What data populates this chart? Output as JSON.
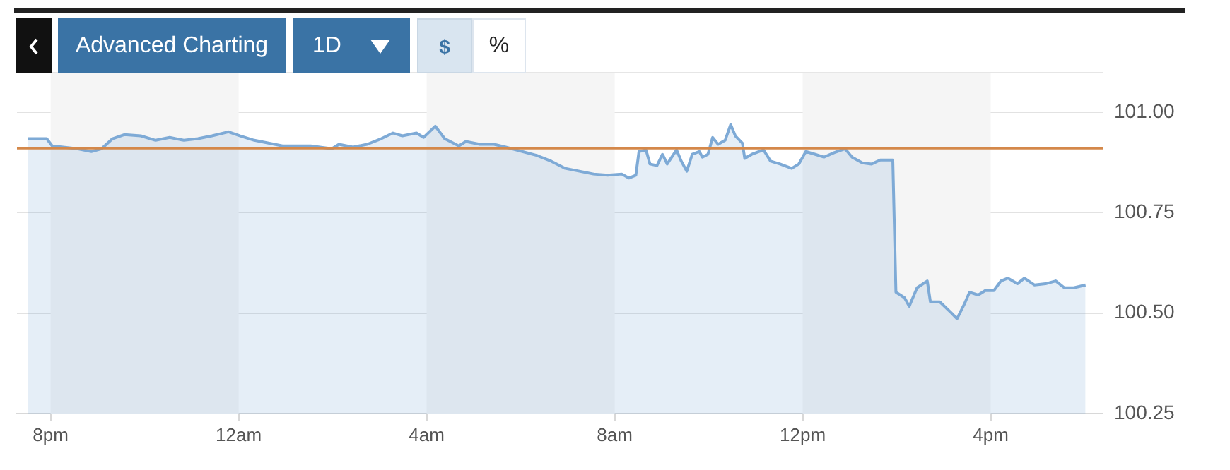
{
  "chart_data": {
    "type": "area",
    "color": "#7eaad6",
    "annotations": [
      "Advanced Charting",
      "1D",
      "$",
      "%"
    ],
    "x": [
      "--01-01T19:31",
      "--01-01T19:55",
      "--01-01T20:02",
      "--01-01T20:16",
      "--01-01T20:34",
      "--01-01T20:52",
      "--01-01T21:05",
      "--01-01T21:19",
      "--01-01T21:34",
      "--01-01T21:55",
      "--01-01T22:14",
      "--01-01T22:32",
      "--01-01T22:50",
      "--01-01T23:08",
      "--01-01T23:26",
      "--01-01T23:47",
      "--01-02T00:02",
      "--01-02T00:20",
      "--01-02T00:38",
      "--01-02T00:56",
      "--01-02T01:14",
      "--01-02T01:32",
      "--01-02T01:59",
      "--01-02T02:08",
      "--01-02T02:26",
      "--01-02T02:44",
      "--01-02T03:02",
      "--01-02T03:17",
      "--01-02T03:29",
      "--01-02T03:47",
      "--01-02T03:56",
      "--01-02T04:11",
      "--01-02T04:23",
      "--01-02T04:41",
      "--01-02T04:50",
      "--01-02T05:08",
      "--01-02T05:26",
      "--01-02T05:41",
      "--01-02T06:21",
      "--01-02T06:39",
      "--01-02T06:57",
      "--01-02T07:15",
      "--01-02T07:33",
      "--01-02T07:51",
      "--01-02T08:09",
      "--01-02T08:18",
      "--01-02T08:27",
      "--01-02T08:31",
      "--01-02T08:40",
      "--01-02T08:45",
      "--01-02T08:54",
      "--01-02T09:01",
      "--01-02T09:07",
      "--01-02T09:19",
      "--01-02T09:25",
      "--01-02T09:32",
      "--01-02T09:39",
      "--01-02T09:48",
      "--01-02T09:52",
      "--01-02T09:59",
      "--01-02T10:05",
      "--01-02T10:12",
      "--01-02T10:21",
      "--01-02T10:28",
      "--01-02T10:34",
      "--01-02T10:43",
      "--01-02T10:46",
      "--01-02T10:55",
      "--01-02T11:10",
      "--01-02T11:19",
      "--01-02T11:31",
      "--01-02T11:46",
      "--01-02T11:55",
      "--01-02T12:04",
      "--01-02T12:16",
      "--01-02T12:27",
      "--01-02T12:40",
      "--01-02T12:54",
      "--01-02T13:03",
      "--01-02T13:16",
      "--01-02T13:28",
      "--01-02T13:39",
      "--01-02T13:55",
      "--01-02T13:59",
      "--01-02T14:10",
      "--01-02T14:16",
      "--01-02T14:26",
      "--01-02T14:39",
      "--01-02T14:43",
      "--01-02T14:55",
      "--01-02T15:10",
      "--01-02T15:17",
      "--01-02T15:26",
      "--01-02T15:33",
      "--01-02T15:44",
      "--01-02T15:53",
      "--01-02T16:04",
      "--01-02T16:13",
      "--01-02T16:22",
      "--01-02T16:34",
      "--01-02T16:43",
      "--01-02T16:56",
      "--01-02T17:10",
      "--01-02T17:23",
      "--01-02T17:34",
      "--01-02T17:46",
      "--01-02T18:01"
    ],
    "values": [
      100.934,
      100.934,
      100.916,
      100.913,
      100.909,
      100.902,
      100.909,
      100.934,
      100.944,
      100.941,
      100.93,
      100.937,
      100.93,
      100.934,
      100.941,
      100.951,
      100.941,
      100.93,
      100.923,
      100.916,
      100.916,
      100.916,
      100.909,
      100.92,
      100.913,
      100.92,
      100.934,
      100.948,
      100.941,
      100.948,
      100.937,
      100.965,
      100.934,
      100.916,
      100.927,
      100.92,
      100.92,
      100.913,
      100.892,
      100.878,
      100.86,
      100.853,
      100.846,
      100.843,
      100.846,
      100.836,
      100.843,
      100.902,
      100.906,
      100.871,
      100.867,
      100.895,
      100.871,
      100.906,
      100.878,
      100.853,
      100.895,
      100.902,
      100.888,
      100.895,
      100.937,
      100.92,
      100.93,
      100.969,
      100.941,
      100.923,
      100.885,
      100.895,
      100.906,
      100.878,
      100.871,
      100.86,
      100.871,
      100.902,
      100.895,
      100.888,
      100.899,
      100.909,
      100.888,
      100.874,
      100.871,
      100.881,
      100.881,
      100.552,
      100.538,
      100.517,
      100.563,
      100.58,
      100.528,
      100.528,
      100.5,
      100.486,
      100.521,
      100.552,
      100.545,
      100.556,
      100.556,
      100.58,
      100.587,
      100.573,
      100.587,
      100.57,
      100.573,
      100.58,
      100.563,
      100.563,
      100.57
    ],
    "xlim": [
      "--01-01T19:17",
      "--01-02T18:23"
    ],
    "xticks": [
      {
        "value": "--01-01T20:00",
        "label": "8pm"
      },
      {
        "value": "--01-02T00:00",
        "label": "12am"
      },
      {
        "value": "--01-02T04:00",
        "label": "4am"
      },
      {
        "value": "--01-02T08:00",
        "label": "8am"
      },
      {
        "value": "--01-02T12:00",
        "label": "12pm"
      },
      {
        "value": "--01-02T16:00",
        "label": "4pm"
      }
    ],
    "ylim": [
      100.25,
      101.1
    ],
    "yticks": [
      {
        "value": 100.25,
        "label": "100.25"
      },
      {
        "value": 100.5,
        "label": "100.50"
      },
      {
        "value": 100.75,
        "label": "100.75"
      },
      {
        "value": 101,
        "label": "101.00"
      }
    ],
    "grid": "y",
    "ref_lines": [
      {
        "axis": "y",
        "value": 100.91,
        "color": "#d4884a"
      }
    ],
    "bands": [
      {
        "axis": "x",
        "from": "--01-01T20:00",
        "to": "--01-02T00:00",
        "color": "#f5f5f5"
      },
      {
        "axis": "x",
        "from": "--01-02T04:00",
        "to": "--01-02T08:00",
        "color": "#f5f5f5"
      },
      {
        "axis": "x",
        "from": "--01-02T12:00",
        "to": "--01-02T16:00",
        "color": "#f5f5f5"
      }
    ]
  }
}
